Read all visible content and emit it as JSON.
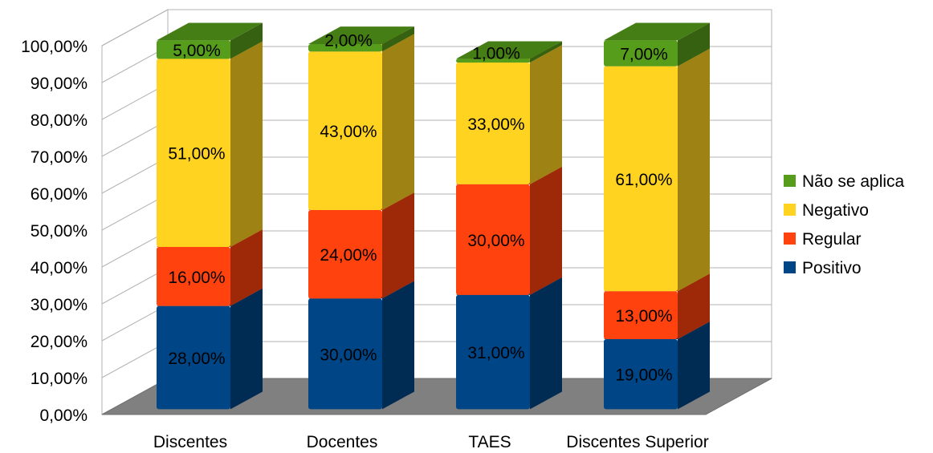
{
  "chart_data": {
    "type": "bar",
    "stacked": true,
    "three_d": true,
    "categories": [
      "Discentes",
      "Docentes",
      "TAES",
      "Discentes Superior"
    ],
    "series": [
      {
        "name": "Positivo",
        "color": "#004586",
        "values": [
          28,
          30,
          31,
          19
        ],
        "labels": [
          "28,00%",
          "30,00%",
          "31,00%",
          "19,00%"
        ]
      },
      {
        "name": "Regular",
        "color": "#ff420e",
        "values": [
          16,
          24,
          30,
          13
        ],
        "labels": [
          "16,00%",
          "24,00%",
          "30,00%",
          "13,00%"
        ]
      },
      {
        "name": "Negativo",
        "color": "#ffd320",
        "values": [
          51,
          43,
          33,
          61
        ],
        "labels": [
          "51,00%",
          "43,00%",
          "33,00%",
          "61,00%"
        ]
      },
      {
        "name": "Não se aplica",
        "color": "#579d1c",
        "values": [
          5,
          2,
          1,
          7
        ],
        "labels": [
          "5,00%",
          "2,00%",
          "1,00%",
          "7,00%"
        ]
      }
    ],
    "ylim": [
      0,
      100
    ],
    "yticks": [
      "0,00%",
      "10,00%",
      "20,00%",
      "30,00%",
      "40,00%",
      "50,00%",
      "60,00%",
      "70,00%",
      "80,00%",
      "90,00%",
      "100,00%"
    ],
    "grid": true,
    "legend": "right",
    "legend_order": [
      "Não se aplica",
      "Negativo",
      "Regular",
      "Positivo"
    ],
    "floor_color": "#808080"
  }
}
